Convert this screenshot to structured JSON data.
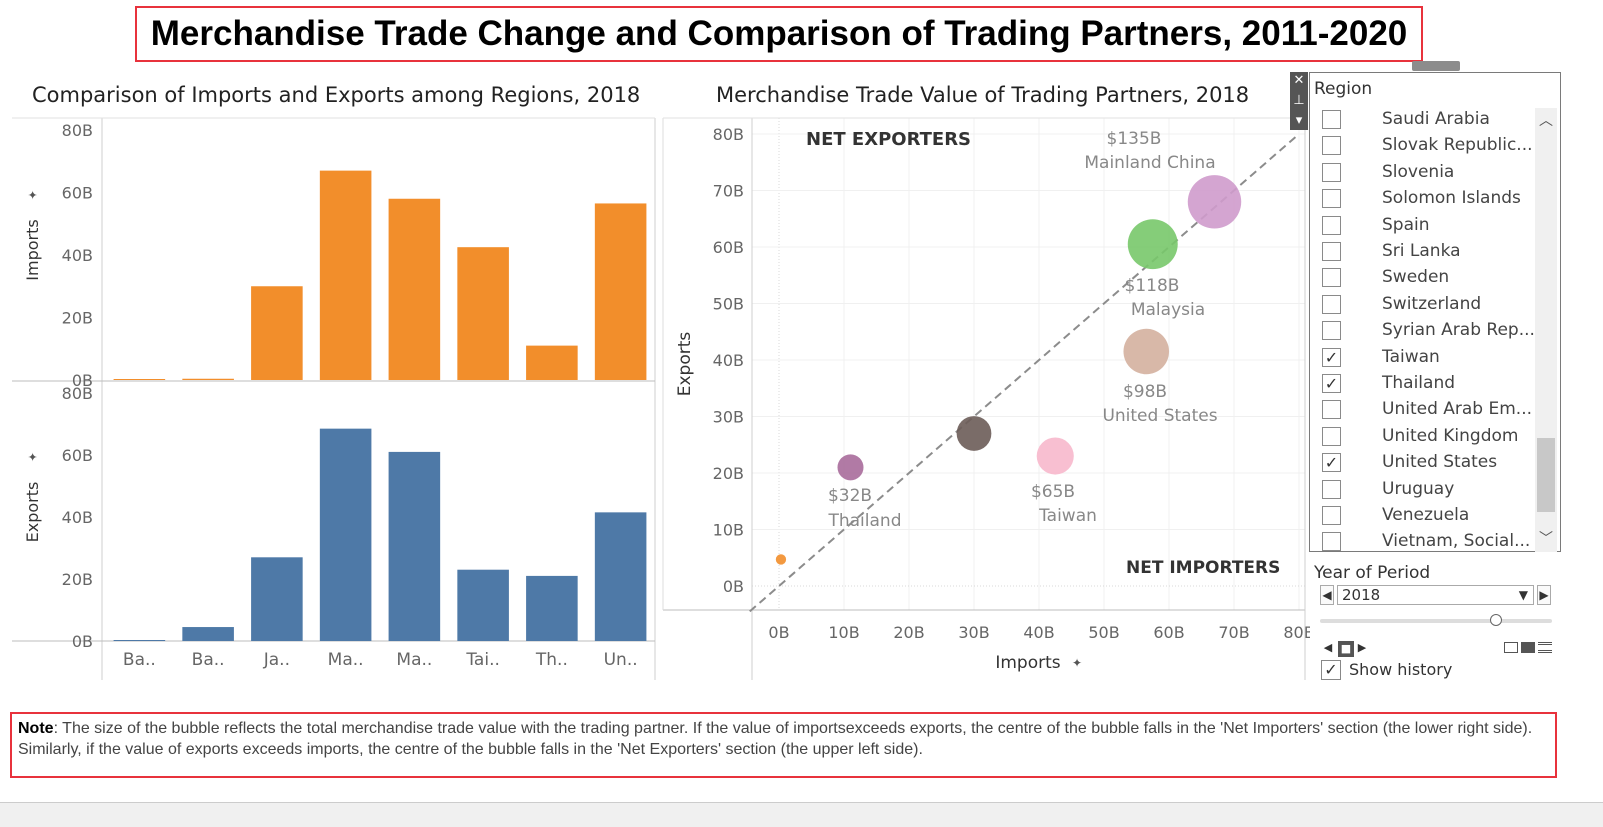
{
  "dashboard_title": "Merchandise Trade Change and Comparison of Trading Partners, 2011-2020",
  "chart_data": [
    {
      "type": "bar",
      "title": "Comparison of Imports and Exports among Regions, 2018",
      "categories": [
        "Ba..",
        "Ba..",
        "Ja..",
        "Ma..",
        "Ma..",
        "Tai..",
        "Th..",
        "Un.."
      ],
      "series": [
        {
          "name": "Imports",
          "color": "#f28e2b",
          "values": [
            0.3,
            0.4,
            30,
            67,
            58,
            42.5,
            11,
            56.5
          ]
        },
        {
          "name": "Exports",
          "color": "#4e79a7",
          "values": [
            0.3,
            4.5,
            27,
            68.5,
            61,
            23,
            21,
            41.5
          ]
        }
      ],
      "ylabels": [
        "Imports",
        "Exports"
      ],
      "yticks": [
        "0B",
        "20B",
        "40B",
        "60B",
        "80B"
      ],
      "ylim": [
        0,
        80
      ],
      "grid": false
    },
    {
      "type": "scatter",
      "title": "Merchandise Trade Value of Trading Partners, 2018",
      "xlabel": "Imports",
      "ylabel": "Exports",
      "xticks": [
        "0B",
        "10B",
        "20B",
        "30B",
        "40B",
        "50B",
        "60B",
        "70B",
        "80B"
      ],
      "yticks": [
        "0B",
        "10B",
        "20B",
        "30B",
        "40B",
        "50B",
        "60B",
        "70B",
        "80B"
      ],
      "xlim": [
        0,
        80
      ],
      "ylim": [
        0,
        80
      ],
      "grid": true,
      "annotations": [
        "NET EXPORTERS",
        "NET IMPORTERS"
      ],
      "points": [
        {
          "x": 67,
          "y": 68,
          "total": 135,
          "color": "#cf9bcc",
          "value_label": "$135B",
          "name_label": "Mainland China"
        },
        {
          "x": 57.5,
          "y": 60.5,
          "total": 118,
          "color": "#78c86a",
          "value_label": "$118B",
          "name_label": "Malaysia"
        },
        {
          "x": 56.5,
          "y": 41.5,
          "total": 98,
          "color": "#d4b09e",
          "value_label": "$98B",
          "name_label": "United States"
        },
        {
          "x": 42.5,
          "y": 23,
          "total": 65,
          "color": "#f7b8cc",
          "value_label": "$65B",
          "name_label": "Taiwan"
        },
        {
          "x": 30,
          "y": 27,
          "total": 57,
          "color": "#6b5c58",
          "value_label": "",
          "name_label": ""
        },
        {
          "x": 11,
          "y": 21,
          "total": 32,
          "color": "#a86b9b",
          "value_label": "$32B",
          "name_label": "Thailand"
        },
        {
          "x": 0.3,
          "y": 4.7,
          "total": 5,
          "color": "#f28e2b",
          "value_label": "",
          "name_label": ""
        }
      ]
    }
  ],
  "region_filter": {
    "title": "Region",
    "items": [
      {
        "label": "Saudi Arabia",
        "checked": false
      },
      {
        "label": "Slovak Republic...",
        "checked": false
      },
      {
        "label": "Slovenia",
        "checked": false
      },
      {
        "label": "Solomon Islands",
        "checked": false
      },
      {
        "label": "Spain",
        "checked": false
      },
      {
        "label": "Sri Lanka",
        "checked": false
      },
      {
        "label": "Sweden",
        "checked": false
      },
      {
        "label": "Switzerland",
        "checked": false
      },
      {
        "label": "Syrian Arab Rep...",
        "checked": false
      },
      {
        "label": "Taiwan",
        "checked": true
      },
      {
        "label": "Thailand",
        "checked": true
      },
      {
        "label": "United Arab Em...",
        "checked": false
      },
      {
        "label": "United Kingdom",
        "checked": false
      },
      {
        "label": "United States",
        "checked": true
      },
      {
        "label": "Uruguay",
        "checked": false
      },
      {
        "label": "Venezuela",
        "checked": false
      },
      {
        "label": "Vietnam, Social...",
        "checked": false
      }
    ]
  },
  "year_filter": {
    "title": "Year of Period",
    "value": "2018",
    "show_history_label": "Show history",
    "show_history_checked": true
  },
  "note": {
    "prefix": "Note",
    "text": ": The size of the bubble reflects the total merchandise trade value with the trading partner. If the value of importsexceeds exports, the centre of the bubble falls in the 'Net Importers' section (the lower right side). Similarly, if the value of exports exceeds imports, the centre of the bubble falls in the 'Net Exporters' section (the upper left side)."
  },
  "icons": [
    "close-icon",
    "pin-icon",
    "menu-icon",
    "check-icon",
    "chevron-up-icon",
    "chevron-down-icon",
    "play-icon",
    "stop-icon",
    "step-back-icon",
    "step-forward-icon"
  ]
}
